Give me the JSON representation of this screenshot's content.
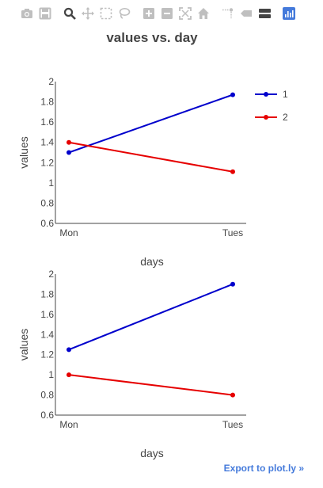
{
  "modebar": {
    "icons": [
      "camera-icon",
      "save-icon",
      "zoom-icon",
      "pan-icon",
      "box-select-icon",
      "lasso-icon",
      "zoom-in-icon",
      "zoom-out-icon",
      "autoscale-icon",
      "home-icon",
      "spike-lines-icon",
      "hover-closest-icon",
      "hover-compare-icon",
      "plotly-logo-icon"
    ],
    "colors": {
      "muted": "#bfbfbf",
      "dark": "#444444",
      "active": "#447adb"
    }
  },
  "export_link": "Export to plot.ly »",
  "chart_data": [
    {
      "type": "line",
      "title": "values vs. day",
      "xlabel": "days",
      "ylabel": "values",
      "categories": [
        "Mon",
        "Tues"
      ],
      "ylim": [
        0.6,
        2
      ],
      "yticks": [
        "0.6",
        "0.8",
        "1",
        "1.2",
        "1.4",
        "1.6",
        "1.8",
        "2"
      ],
      "grid": false,
      "legend": "top-right",
      "series": [
        {
          "name": "1",
          "values": [
            1.3,
            1.87
          ],
          "color": "#0000cc"
        },
        {
          "name": "2",
          "values": [
            1.4,
            1.11
          ],
          "color": "#e60000"
        }
      ]
    },
    {
      "type": "line",
      "title": "",
      "xlabel": "days",
      "ylabel": "values",
      "categories": [
        "Mon",
        "Tues"
      ],
      "ylim": [
        0.6,
        2
      ],
      "yticks": [
        "0.6",
        "0.8",
        "1",
        "1.2",
        "1.4",
        "1.6",
        "1.8",
        "2"
      ],
      "grid": false,
      "legend": "",
      "series": [
        {
          "values": [
            1.25,
            1.9
          ],
          "color": "#0000cc"
        },
        {
          "values": [
            1.0,
            0.8
          ],
          "color": "#e60000"
        }
      ]
    }
  ]
}
